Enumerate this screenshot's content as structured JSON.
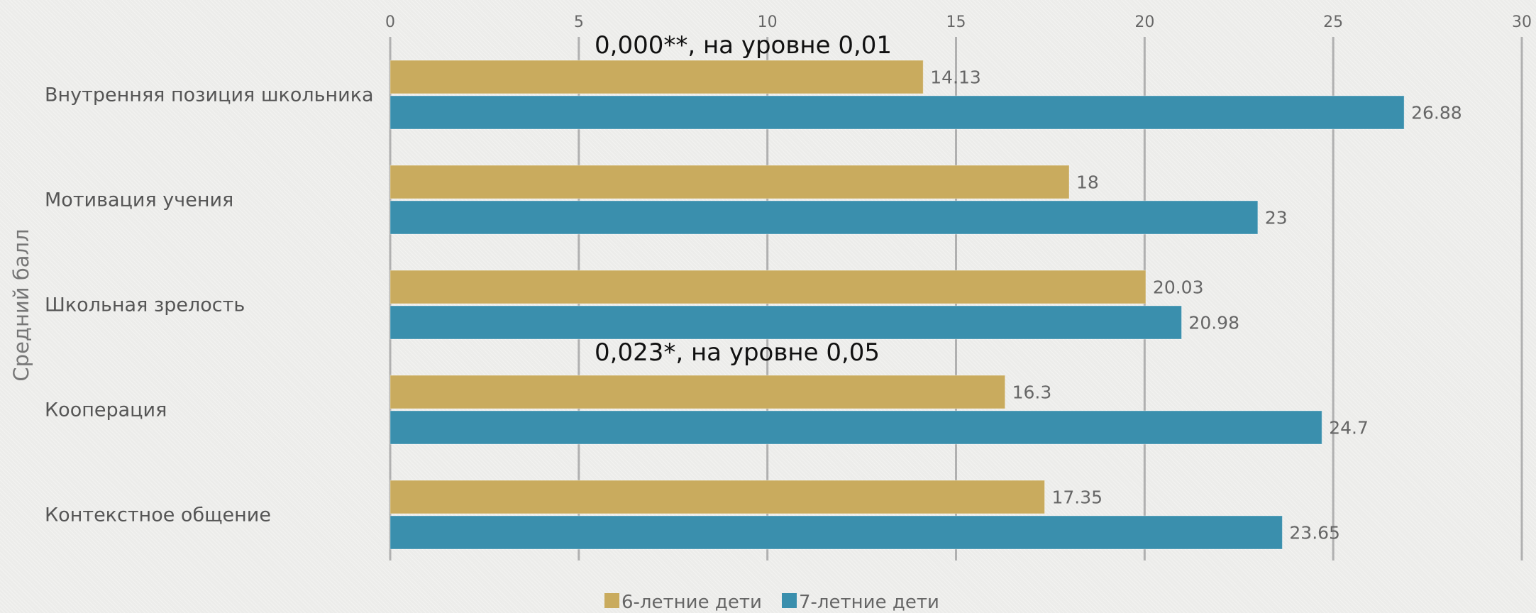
{
  "chart_data": {
    "type": "bar",
    "orientation": "horizontal",
    "ylabel": "Средний балл",
    "categories": [
      "Внутренняя позиция школьника",
      "Мотивация учения",
      "Школьная зрелость",
      "Кооперация",
      "Контекстное общение"
    ],
    "series": [
      {
        "name": "6-летние дети",
        "color": "#c9ab5e",
        "values": [
          14.13,
          18,
          20.03,
          16.3,
          17.35
        ],
        "labels": [
          "14.13",
          "18",
          "20.03",
          "16.3",
          "17.35"
        ]
      },
      {
        "name": "7-летние дети",
        "color": "#3a8fad",
        "values": [
          26.88,
          23,
          20.98,
          24.7,
          23.65
        ],
        "labels": [
          "26.88",
          "23",
          "20.98",
          "24.7",
          "23.65"
        ]
      }
    ],
    "xlim": [
      0,
      30
    ],
    "xticks": [
      "0",
      "5",
      "10",
      "15",
      "20",
      "25",
      "30"
    ],
    "axis_position": "top",
    "grid": true,
    "legend_position": "bottom",
    "annotations": [
      {
        "text": "0,000**, на уровне 0,01",
        "anchor_category": 0
      },
      {
        "text": "0,023*, на уровне 0,05",
        "anchor_category": 3
      }
    ]
  }
}
